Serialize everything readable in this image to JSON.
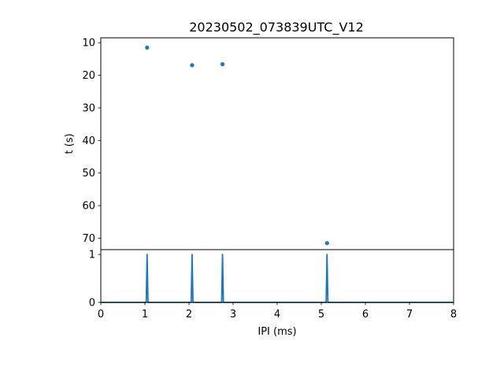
{
  "chart_data": [
    {
      "type": "scatter",
      "title": "20230502_073839UTC_V12",
      "xlabel": "",
      "ylabel": "t (s)",
      "xlim": [
        0,
        8
      ],
      "ylim": [
        73.5,
        8.5
      ],
      "y_inverted": true,
      "yticks": [
        10,
        20,
        30,
        40,
        50,
        60,
        70
      ],
      "color": "#1f77b4",
      "points": [
        {
          "x": 1.05,
          "y": 11.5
        },
        {
          "x": 2.07,
          "y": 16.9
        },
        {
          "x": 2.76,
          "y": 16.6
        },
        {
          "x": 5.13,
          "y": 71.5
        }
      ]
    },
    {
      "type": "line",
      "title": "",
      "xlabel": "IPI (ms)",
      "ylabel": "",
      "xlim": [
        0,
        8
      ],
      "ylim": [
        0,
        1.1
      ],
      "xticks": [
        0,
        1,
        2,
        3,
        4,
        5,
        6,
        7,
        8
      ],
      "yticks": [
        0,
        1
      ],
      "color": "#1f77b4",
      "series": [
        {
          "x": [
            0,
            1.03,
            1.05,
            1.07,
            2.05,
            2.07,
            2.09,
            2.74,
            2.76,
            2.78,
            5.11,
            5.13,
            5.15,
            8
          ],
          "values": [
            0,
            0,
            1,
            0,
            0,
            1,
            0,
            0,
            1,
            0,
            0,
            1,
            0,
            0
          ]
        }
      ]
    }
  ]
}
